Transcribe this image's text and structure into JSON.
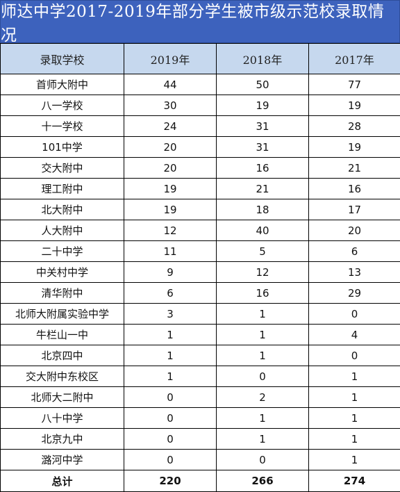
{
  "title": "师达中学2017-2019年部分学生被市级示范校录取情况",
  "header": {
    "col_school": "录取学校",
    "col_2019": "2019年",
    "col_2018": "2018年",
    "col_2017": "2017年"
  },
  "rows": [
    {
      "school": "首师大附中",
      "y2019": "44",
      "y2018": "50",
      "y2017": "77"
    },
    {
      "school": "八一学校",
      "y2019": "30",
      "y2018": "19",
      "y2017": "19"
    },
    {
      "school": "十一学校",
      "y2019": "24",
      "y2018": "31",
      "y2017": "28"
    },
    {
      "school": "101中学",
      "y2019": "20",
      "y2018": "31",
      "y2017": "19"
    },
    {
      "school": "交大附中",
      "y2019": "20",
      "y2018": "16",
      "y2017": "21"
    },
    {
      "school": "理工附中",
      "y2019": "19",
      "y2018": "21",
      "y2017": "16"
    },
    {
      "school": "北大附中",
      "y2019": "19",
      "y2018": "18",
      "y2017": "17"
    },
    {
      "school": "人大附中",
      "y2019": "12",
      "y2018": "40",
      "y2017": "20"
    },
    {
      "school": "二十中学",
      "y2019": "11",
      "y2018": "5",
      "y2017": "6"
    },
    {
      "school": "中关村中学",
      "y2019": "9",
      "y2018": "12",
      "y2017": "13"
    },
    {
      "school": "清华附中",
      "y2019": "6",
      "y2018": "16",
      "y2017": "29"
    },
    {
      "school": "北师大附属实验中学",
      "y2019": "3",
      "y2018": "1",
      "y2017": "0"
    },
    {
      "school": "牛栏山一中",
      "y2019": "1",
      "y2018": "1",
      "y2017": "4"
    },
    {
      "school": "北京四中",
      "y2019": "1",
      "y2018": "1",
      "y2017": "0"
    },
    {
      "school": "交大附中东校区",
      "y2019": "1",
      "y2018": "0",
      "y2017": "1"
    },
    {
      "school": "北师大二附中",
      "y2019": "0",
      "y2018": "2",
      "y2017": "1"
    },
    {
      "school": "八十中学",
      "y2019": "0",
      "y2018": "1",
      "y2017": "1"
    },
    {
      "school": "北京九中",
      "y2019": "0",
      "y2018": "1",
      "y2017": "1"
    },
    {
      "school": "潞河中学",
      "y2019": "0",
      "y2018": "0",
      "y2017": "1"
    }
  ],
  "total": {
    "label": "总计",
    "y2019": "220",
    "y2018": "266",
    "y2017": "274"
  },
  "colors": {
    "title_bg": "#3d62bd",
    "header_bg": "#c6d8ee"
  }
}
